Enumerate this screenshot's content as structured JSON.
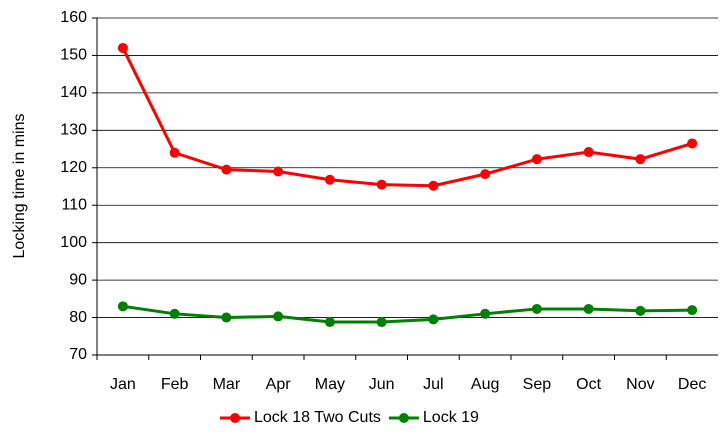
{
  "chart_data": {
    "type": "line",
    "y_label": "Locking time in mins",
    "categories": [
      "Jan",
      "Feb",
      "Mar",
      "Apr",
      "May",
      "Jun",
      "Jul",
      "Aug",
      "Sep",
      "Oct",
      "Nov",
      "Dec"
    ],
    "series": [
      {
        "name": "Lock 18 Two Cuts",
        "color": "#ff0000",
        "values": [
          152,
          124,
          119.5,
          119,
          116.8,
          115.5,
          115.2,
          118.3,
          122.3,
          124.2,
          122.3,
          126.5
        ]
      },
      {
        "name": "Lock 19",
        "color": "#008000",
        "values": [
          83,
          81,
          80,
          80.3,
          78.8,
          78.8,
          79.5,
          81,
          82.3,
          82.3,
          81.8,
          82
        ]
      }
    ],
    "ylim": [
      70,
      160
    ],
    "yticks": [
      70,
      80,
      90,
      100,
      110,
      120,
      130,
      140,
      150,
      160
    ],
    "grid": true,
    "legend": "bottom"
  }
}
